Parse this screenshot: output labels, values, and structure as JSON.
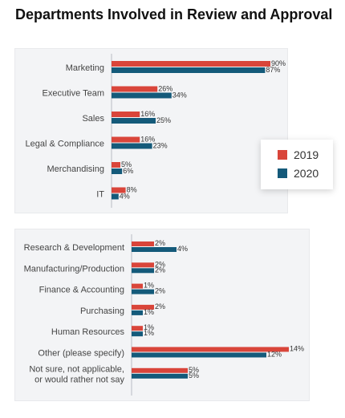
{
  "title": "Departments Involved in Review and Approval",
  "colors": {
    "2019": "#d9453a",
    "2020": "#145a7a",
    "panel": "#f3f4f6",
    "text": "#444444"
  },
  "legend": [
    {
      "label": "2019",
      "color": "#d9453a"
    },
    {
      "label": "2020",
      "color": "#145a7a"
    }
  ],
  "chart_data": [
    {
      "type": "bar",
      "orientation": "horizontal",
      "title": "",
      "xlabel": "",
      "ylabel": "",
      "categories": [
        "Marketing",
        "Executive Team",
        "Sales",
        "Legal & Compliance",
        "Merchandising",
        "IT"
      ],
      "series": [
        {
          "name": "2019",
          "values": [
            90,
            26,
            16,
            16,
            5,
            8
          ]
        },
        {
          "name": "2020",
          "values": [
            87,
            34,
            25,
            23,
            6,
            4
          ]
        }
      ],
      "data_label_format": "{v}%",
      "grid": false,
      "legend_position": "right"
    },
    {
      "type": "bar",
      "orientation": "horizontal",
      "title": "",
      "xlabel": "",
      "ylabel": "",
      "categories": [
        "Research & Development",
        "Manufacturing/Production",
        "Finance & Accounting",
        "Purchasing",
        "Human Resources",
        "Other (please specify)",
        "Not sure, not applicable,\nor would rather not say"
      ],
      "series": [
        {
          "name": "2019",
          "values": [
            2,
            2,
            1,
            2,
            1,
            14,
            5
          ]
        },
        {
          "name": "2020",
          "values": [
            4,
            2,
            2,
            1,
            1,
            12,
            5
          ]
        }
      ],
      "data_label_format": "{v}%",
      "grid": false,
      "legend_position": "right"
    }
  ]
}
